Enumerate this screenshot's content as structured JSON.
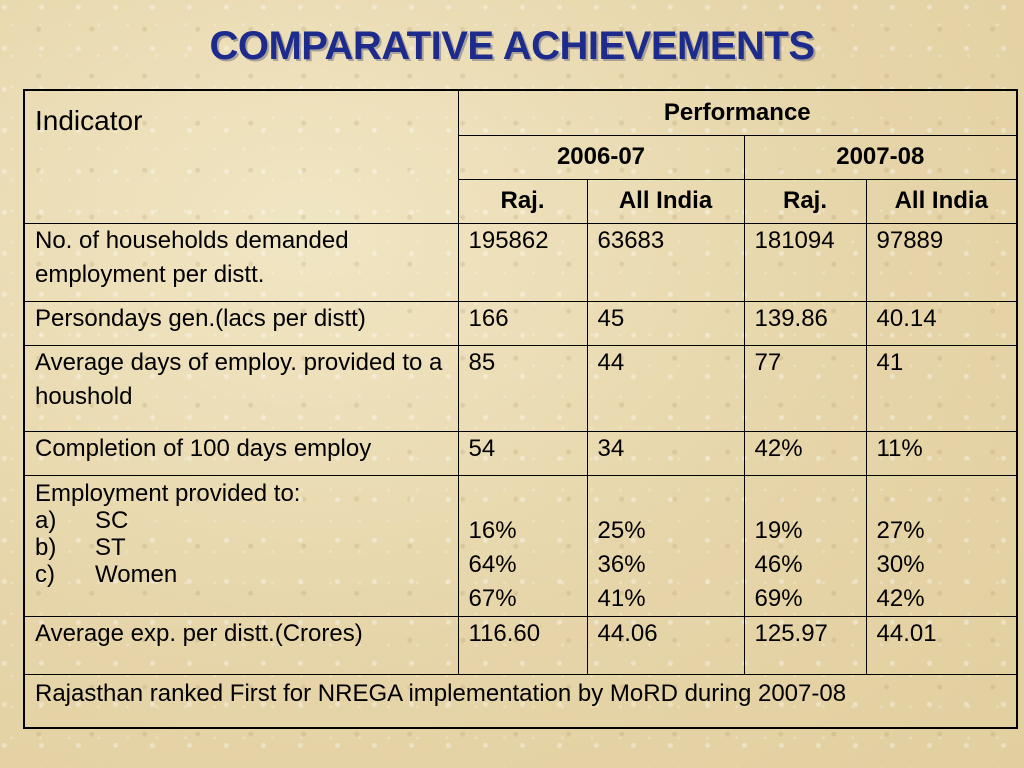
{
  "title": "COMPARATIVE ACHIEVEMENTS",
  "table": {
    "indicator_header": "Indicator",
    "performance_header": "Performance",
    "years": [
      "2006-07",
      "2007-08"
    ],
    "sub_headers": [
      "Raj.",
      "All India",
      "Raj.",
      "All India"
    ],
    "rows": [
      {
        "label": "No. of households demanded employment per distt.",
        "values": [
          "195862",
          "63683",
          "181094",
          "97889"
        ]
      },
      {
        "label": "Persondays gen.(lacs per distt)",
        "values": [
          "166",
          "45",
          "139.86",
          "40.14"
        ]
      },
      {
        "label": "Average days of employ. provided to a houshold",
        "values": [
          "85",
          "44",
          "77",
          "41"
        ]
      },
      {
        "label": "Completion of 100 days employ",
        "values": [
          "54",
          "34",
          "42%",
          "11%"
        ]
      }
    ],
    "employment": {
      "label": "Employment provided to:",
      "items": [
        {
          "mark": "a)",
          "name": "SC",
          "values": [
            "16%",
            "25%",
            "19%",
            "27%"
          ]
        },
        {
          "mark": "b)",
          "name": "ST",
          "values": [
            "64%",
            "36%",
            "46%",
            "30%"
          ]
        },
        {
          "mark": "c)",
          "name": "Women",
          "values": [
            "67%",
            "41%",
            "69%",
            "42%"
          ]
        }
      ]
    },
    "avg_exp": {
      "label": "Average exp. per distt.(Crores)",
      "values": [
        "116.60",
        "44.06",
        "125.97",
        "44.01"
      ]
    },
    "footer_note": "Rajasthan ranked First for NREGA implementation by MoRD during 2007-08"
  }
}
